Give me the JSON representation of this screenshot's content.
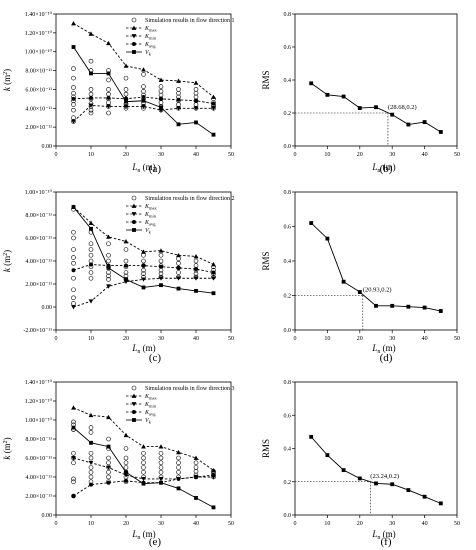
{
  "chart_data": [
    {
      "id": "a",
      "type": "scatter+line",
      "panel_label": "(a)",
      "xlabel_main": "L",
      "xlabel_sub": "n",
      "xlabel_unit": " (m)",
      "ylabel_main": "k",
      "ylabel_unit": " (m",
      "ylabel_sup": "2",
      "ylabel_close": ")",
      "xlim": [
        0,
        50
      ],
      "ylim": [
        0,
        1.4e-10
      ],
      "xticks": [
        "0",
        "10",
        "20",
        "30",
        "40",
        "50"
      ],
      "yticks": [
        "0.00",
        "2.00×10⁻¹¹",
        "4.00×10⁻¹¹",
        "6.00×10⁻¹¹",
        "8.00×10⁻¹¹",
        "1.00×10⁻¹⁰",
        "1.20×10⁻¹⁰",
        "1.40×10⁻¹⁰"
      ],
      "ytick_values": [
        0,
        2e-11,
        4e-11,
        6e-11,
        8e-11,
        1e-10,
        1.2e-10,
        1.4e-10
      ],
      "legend": [
        {
          "label": "Simulation results in flow direction 1",
          "marker": "circle"
        },
        {
          "label": "K",
          "sub": "max",
          "marker": "triangle-up"
        },
        {
          "label": "K",
          "sub": "min",
          "marker": "triangle-down"
        },
        {
          "label": "K",
          "sub": "avg",
          "marker": "circle-filled"
        },
        {
          "label": "V",
          "sub": "k",
          "marker": "square"
        }
      ],
      "simulation": {
        "x": [
          5,
          5,
          5,
          5,
          5,
          5,
          5,
          5,
          5,
          5,
          10,
          10,
          10,
          10,
          10,
          10,
          10,
          10,
          10,
          15,
          15,
          15,
          15,
          15,
          15,
          15,
          15,
          20,
          20,
          20,
          20,
          20,
          20,
          20,
          25,
          25,
          25,
          25,
          25,
          25,
          25,
          25,
          30,
          30,
          30,
          30,
          30,
          30,
          30,
          35,
          35,
          35,
          35,
          35,
          35,
          40,
          40,
          40,
          40,
          40,
          40,
          45,
          45,
          45,
          45,
          45
        ],
        "y": [
          8.2e-11,
          7.2e-11,
          6.2e-11,
          5.6e-11,
          5.2e-11,
          4.8e-11,
          4.4e-11,
          3.8e-11,
          3e-11,
          2.6e-11,
          9e-11,
          8e-11,
          6e-11,
          5.5e-11,
          5e-11,
          4.5e-11,
          4.2e-11,
          3.8e-11,
          3.5e-11,
          8e-11,
          7e-11,
          6e-11,
          5.5e-11,
          5e-11,
          4.6e-11,
          4.2e-11,
          3.5e-11,
          7.2e-11,
          6e-11,
          5.5e-11,
          5e-11,
          4.5e-11,
          4.2e-11,
          4e-11,
          7.6e-11,
          6.3e-11,
          5.8e-11,
          5.4e-11,
          5e-11,
          4.6e-11,
          4.2e-11,
          4e-11,
          6.3e-11,
          5.8e-11,
          5.4e-11,
          5e-11,
          4.6e-11,
          4.2e-11,
          3.8e-11,
          6e-11,
          5.6e-11,
          5.2e-11,
          4.8e-11,
          4.4e-11,
          4e-11,
          6e-11,
          5.6e-11,
          5.2e-11,
          4.8e-11,
          4.4e-11,
          4e-11,
          5e-11,
          4.6e-11,
          4.4e-11,
          4.2e-11,
          4e-11
        ]
      },
      "series": [
        {
          "name": "K",
          "sub": "max",
          "marker": "triangle-up",
          "line": "dash",
          "x": [
            5,
            10,
            15,
            20,
            25,
            30,
            35,
            40,
            45
          ],
          "y": [
            1.3e-10,
            1.19e-10,
            1.09e-10,
            8.5e-11,
            8.1e-11,
            7e-11,
            6.9e-11,
            6.7e-11,
            5.2e-11
          ]
        },
        {
          "name": "K",
          "sub": "min",
          "marker": "triangle-down",
          "line": "dash",
          "x": [
            5,
            10,
            15,
            20,
            25,
            30,
            35,
            40,
            45
          ],
          "y": [
            2.6e-11,
            4.3e-11,
            4.2e-11,
            4.2e-11,
            4.2e-11,
            3.8e-11,
            4e-11,
            4e-11,
            4e-11
          ]
        },
        {
          "name": "K",
          "sub": "avg",
          "marker": "circle-filled",
          "line": "dash",
          "x": [
            5,
            10,
            15,
            20,
            25,
            30,
            35,
            40,
            45
          ],
          "y": [
            5e-11,
            5.1e-11,
            5.1e-11,
            5e-11,
            5.2e-11,
            5e-11,
            4.9e-11,
            4.8e-11,
            4.5e-11
          ]
        },
        {
          "name": "V",
          "sub": "k",
          "marker": "square",
          "line": "solid",
          "x": [
            5,
            10,
            15,
            20,
            25,
            30,
            35,
            40,
            45
          ],
          "y": [
            1.05e-10,
            7.7e-11,
            7.7e-11,
            4.7e-11,
            4.8e-11,
            4.1e-11,
            2.3e-11,
            2.5e-11,
            1.2e-11
          ]
        }
      ]
    },
    {
      "id": "b",
      "type": "line",
      "panel_label": "(b)",
      "xlabel_main": "L",
      "xlabel_sub": "n",
      "xlabel_unit": " (m)",
      "ylabel": "RMS",
      "xlim": [
        0,
        50
      ],
      "ylim": [
        0,
        0.8
      ],
      "xticks": [
        "0",
        "10",
        "20",
        "30",
        "40",
        "50"
      ],
      "yticks": [
        "0.0",
        "0.2",
        "0.4",
        "0.6",
        "0.8"
      ],
      "ytick_values": [
        0,
        0.2,
        0.4,
        0.6,
        0.8
      ],
      "series": [
        {
          "x": [
            5,
            10,
            15,
            20,
            25,
            30,
            35,
            40,
            45
          ],
          "y": [
            0.38,
            0.31,
            0.3,
            0.23,
            0.235,
            0.19,
            0.13,
            0.145,
            0.085
          ]
        }
      ],
      "annotation": {
        "text": "(28.68,0.2)",
        "x": 28.68,
        "y": 0.2
      }
    },
    {
      "id": "c",
      "type": "scatter+line",
      "panel_label": "(c)",
      "xlabel_main": "L",
      "xlabel_sub": "n",
      "xlabel_unit": " (m)",
      "ylabel_main": "k",
      "ylabel_unit": " (m",
      "ylabel_sup": "2",
      "ylabel_close": ")",
      "xlim": [
        0,
        50
      ],
      "ylim": [
        -2e-11,
        1e-10
      ],
      "xticks": [
        "0",
        "10",
        "20",
        "30",
        "40",
        "50"
      ],
      "yticks": [
        "-2.00×10⁻¹¹",
        "0.00",
        "2.00×10⁻¹¹",
        "4.00×10⁻¹¹",
        "6.00×10⁻¹¹",
        "8.00×10⁻¹¹",
        "1.00×10⁻¹⁰"
      ],
      "ytick_values": [
        -2e-11,
        0,
        2e-11,
        4e-11,
        6e-11,
        8e-11,
        1e-10
      ],
      "legend": [
        {
          "label": "Simulation results in flow direction 2",
          "marker": "circle"
        },
        {
          "label": "K",
          "sub": "max",
          "marker": "triangle-up"
        },
        {
          "label": "K",
          "sub": "min",
          "marker": "triangle-down"
        },
        {
          "label": "K",
          "sub": "avg",
          "marker": "circle-filled"
        },
        {
          "label": "V",
          "sub": "k",
          "marker": "square"
        }
      ],
      "simulation": {
        "x": [
          5,
          5,
          5,
          5,
          5,
          5,
          5,
          5,
          5,
          5,
          10,
          10,
          10,
          10,
          10,
          10,
          10,
          10,
          15,
          15,
          15,
          15,
          15,
          15,
          15,
          20,
          20,
          20,
          20,
          20,
          20,
          25,
          25,
          25,
          25,
          25,
          25,
          30,
          30,
          30,
          30,
          30,
          30,
          35,
          35,
          35,
          35,
          35,
          40,
          40,
          40,
          40,
          40,
          45,
          45,
          45,
          45
        ],
        "y": [
          8.5e-11,
          6.5e-11,
          6e-11,
          5e-11,
          4.3e-11,
          3.8e-11,
          2.5e-11,
          1.5e-11,
          8e-12,
          3e-12,
          6.5e-11,
          5.5e-11,
          5e-11,
          4.5e-11,
          4e-11,
          3.5e-11,
          3e-11,
          2.5e-11,
          5.5e-11,
          4.5e-11,
          4e-11,
          3.5e-11,
          3e-11,
          2.7e-11,
          2.4e-11,
          5e-11,
          4e-11,
          3.5e-11,
          3e-11,
          2.7e-11,
          2.4e-11,
          4.5e-11,
          4e-11,
          3.6e-11,
          3.2e-11,
          2.9e-11,
          2.6e-11,
          4.5e-11,
          4e-11,
          3.6e-11,
          3.2e-11,
          2.9e-11,
          2.6e-11,
          4.2e-11,
          3.8e-11,
          3.4e-11,
          3e-11,
          2.6e-11,
          4e-11,
          3.6e-11,
          3.2e-11,
          2.9e-11,
          2.6e-11,
          3.5e-11,
          3.2e-11,
          2.9e-11,
          2.6e-11
        ]
      },
      "series": [
        {
          "name": "K",
          "sub": "max",
          "marker": "triangle-up",
          "line": "dash",
          "x": [
            5,
            10,
            15,
            20,
            25,
            30,
            35,
            40,
            45
          ],
          "y": [
            8.7e-11,
            7.3e-11,
            6.1e-11,
            5.7e-11,
            4.8e-11,
            4.9e-11,
            4.5e-11,
            4.4e-11,
            3.7e-11
          ]
        },
        {
          "name": "K",
          "sub": "min",
          "marker": "triangle-down",
          "line": "dash",
          "x": [
            5,
            10,
            15,
            20,
            25,
            30,
            35,
            40,
            45
          ],
          "y": [
            0.0,
            5e-12,
            1.8e-11,
            2.2e-11,
            2.4e-11,
            2.5e-11,
            2.5e-11,
            2.5e-11,
            2.5e-11
          ]
        },
        {
          "name": "K",
          "sub": "avg",
          "marker": "circle-filled",
          "line": "dash",
          "x": [
            5,
            10,
            15,
            20,
            25,
            30,
            35,
            40,
            45
          ],
          "y": [
            3.2e-11,
            3.7e-11,
            3.6e-11,
            3.6e-11,
            3.6e-11,
            3.5e-11,
            3.4e-11,
            3.3e-11,
            3e-11
          ]
        },
        {
          "name": "V",
          "sub": "k",
          "marker": "square",
          "line": "solid",
          "x": [
            5,
            10,
            15,
            20,
            25,
            30,
            35,
            40,
            45
          ],
          "y": [
            8.7e-11,
            6.8e-11,
            3.4e-11,
            2.4e-11,
            1.7e-11,
            1.9e-11,
            1.6e-11,
            1.4e-11,
            1.2e-11
          ]
        }
      ]
    },
    {
      "id": "d",
      "type": "line",
      "panel_label": "(d)",
      "xlabel_main": "L",
      "xlabel_sub": "n",
      "xlabel_unit": " (m)",
      "ylabel": "RMS",
      "xlim": [
        0,
        50
      ],
      "ylim": [
        0,
        0.8
      ],
      "xticks": [
        "0",
        "10",
        "20",
        "30",
        "40",
        "50"
      ],
      "yticks": [
        "0.0",
        "0.2",
        "0.4",
        "0.6",
        "0.8"
      ],
      "ytick_values": [
        0,
        0.2,
        0.4,
        0.6,
        0.8
      ],
      "series": [
        {
          "x": [
            5,
            10,
            15,
            20,
            25,
            30,
            35,
            40,
            45
          ],
          "y": [
            0.62,
            0.53,
            0.28,
            0.22,
            0.14,
            0.14,
            0.135,
            0.13,
            0.11
          ]
        }
      ],
      "annotation": {
        "text": "(20.93,0.2)",
        "x": 20.93,
        "y": 0.2
      }
    },
    {
      "id": "e",
      "type": "scatter+line",
      "panel_label": "(e)",
      "xlabel_main": "L",
      "xlabel_sub": "n",
      "xlabel_unit": " (m)",
      "ylabel_main": "k",
      "ylabel_unit": " (m",
      "ylabel_sup": "2",
      "ylabel_close": ")",
      "xlim": [
        0,
        50
      ],
      "ylim": [
        0,
        1.4e-10
      ],
      "xticks": [
        "0",
        "10",
        "20",
        "30",
        "40",
        "50"
      ],
      "yticks": [
        "0.00",
        "2.00×10⁻¹¹",
        "4.00×10⁻¹¹",
        "6.00×10⁻¹¹",
        "8.00×10⁻¹¹",
        "1.00×10⁻¹⁰",
        "1.20×10⁻¹⁰",
        "1.40×10⁻¹⁰"
      ],
      "ytick_values": [
        0,
        2e-11,
        4e-11,
        6e-11,
        8e-11,
        1e-10,
        1.2e-10,
        1.4e-10
      ],
      "legend": [
        {
          "label": "Simulation results in flow direction 3",
          "marker": "circle"
        },
        {
          "label": "K",
          "sub": "max",
          "marker": "triangle-up"
        },
        {
          "label": "K",
          "sub": "min",
          "marker": "triangle-down"
        },
        {
          "label": "K",
          "sub": "avg",
          "marker": "circle-filled"
        },
        {
          "label": "V",
          "sub": "k",
          "marker": "square"
        }
      ],
      "simulation": {
        "x": [
          5,
          5,
          5,
          5,
          5,
          5,
          5,
          5,
          5,
          5,
          10,
          10,
          10,
          10,
          10,
          10,
          10,
          10,
          15,
          15,
          15,
          15,
          15,
          15,
          15,
          15,
          20,
          20,
          20,
          20,
          20,
          20,
          20,
          25,
          25,
          25,
          25,
          25,
          25,
          30,
          30,
          30,
          30,
          30,
          30,
          35,
          35,
          35,
          35,
          35,
          40,
          40,
          40,
          40,
          40,
          45,
          45,
          45,
          45
        ],
        "y": [
          9.8e-11,
          9.5e-11,
          9e-11,
          6.5e-11,
          6e-11,
          5.5e-11,
          3.8e-11,
          3.5e-11,
          2e-11,
          9e-11,
          9.2e-11,
          8.7e-11,
          6.5e-11,
          6e-11,
          5e-11,
          4.5e-11,
          4e-11,
          3.5e-11,
          8e-11,
          7e-11,
          6e-11,
          5.5e-11,
          5e-11,
          4.5e-11,
          4e-11,
          3.5e-11,
          7e-11,
          6e-11,
          5.5e-11,
          5e-11,
          4.5e-11,
          4e-11,
          3.5e-11,
          6.5e-11,
          6e-11,
          5.5e-11,
          5e-11,
          4.5e-11,
          4e-11,
          6.5e-11,
          6e-11,
          5.5e-11,
          5e-11,
          4.5e-11,
          4e-11,
          6e-11,
          5.5e-11,
          5e-11,
          4.5e-11,
          4e-11,
          5.5e-11,
          5e-11,
          4.6e-11,
          4.2e-11,
          4e-11,
          4.6e-11,
          4.4e-11,
          4.2e-11,
          4e-11
        ]
      },
      "series": [
        {
          "name": "K",
          "sub": "max",
          "marker": "triangle-up",
          "line": "dash",
          "x": [
            5,
            10,
            15,
            20,
            25,
            30,
            35,
            40,
            45
          ],
          "y": [
            1.13e-10,
            1.05e-10,
            1.03e-10,
            8.4e-11,
            7.2e-11,
            7.2e-11,
            6.6e-11,
            6e-11,
            4.7e-11
          ]
        },
        {
          "name": "K",
          "sub": "min",
          "marker": "triangle-down",
          "line": "dash",
          "x": [
            5,
            10,
            15,
            20,
            25,
            30,
            35,
            40,
            45
          ],
          "y": [
            6e-11,
            5.5e-11,
            5e-11,
            4.2e-11,
            3.8e-11,
            3.8e-11,
            3.8e-11,
            4e-11,
            4e-11
          ]
        },
        {
          "name": "K",
          "sub": "avg",
          "marker": "circle-filled",
          "line": "dash",
          "x": [
            5,
            10,
            15,
            20,
            25,
            30,
            35,
            40,
            45
          ],
          "y": [
            2e-11,
            3.2e-11,
            3.4e-11,
            3.6e-11,
            3.4e-11,
            3.4e-11,
            3.8e-11,
            4e-11,
            4.2e-11
          ]
        },
        {
          "name": "V",
          "sub": "k",
          "marker": "square",
          "line": "solid",
          "x": [
            5,
            10,
            15,
            20,
            25,
            30,
            35,
            40,
            45
          ],
          "y": [
            9.2e-11,
            7.6e-11,
            7.2e-11,
            4.5e-11,
            3.3e-11,
            3.4e-11,
            2.8e-11,
            1.8e-11,
            8e-12
          ]
        }
      ]
    },
    {
      "id": "f",
      "type": "line",
      "panel_label": "(f)",
      "xlabel_main": "L",
      "xlabel_sub": "n",
      "xlabel_unit": " (m)",
      "ylabel": "RMS",
      "xlim": [
        0,
        50
      ],
      "ylim": [
        0,
        0.8
      ],
      "xticks": [
        "0",
        "10",
        "20",
        "30",
        "40",
        "50"
      ],
      "yticks": [
        "0.0",
        "0.2",
        "0.4",
        "0.6",
        "0.8"
      ],
      "ytick_values": [
        0,
        0.2,
        0.4,
        0.6,
        0.8
      ],
      "series": [
        {
          "x": [
            5,
            10,
            15,
            20,
            25,
            30,
            35,
            40,
            45
          ],
          "y": [
            0.47,
            0.36,
            0.27,
            0.22,
            0.19,
            0.185,
            0.15,
            0.11,
            0.07
          ]
        }
      ],
      "annotation": {
        "text": "(23.24,0.2)",
        "x": 23.24,
        "y": 0.2
      }
    }
  ]
}
